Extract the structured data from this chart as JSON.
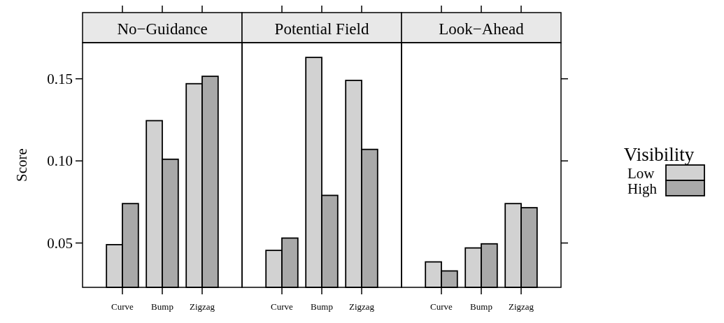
{
  "chart_data": [
    {
      "type": "bar",
      "title": "No−Guidance",
      "ylabel": "Score",
      "categories": [
        "Curve",
        "Bump",
        "Zigzag"
      ],
      "ylim": [
        0.023,
        0.172
      ],
      "yticks": [
        {
          "value": 0.05,
          "label": "0.05"
        },
        {
          "value": 0.1,
          "label": "0.10"
        },
        {
          "value": 0.15,
          "label": "0.15"
        }
      ],
      "tick_labels": "xy",
      "grid": false,
      "series": [
        {
          "color": "#d2d2d2",
          "values": [
            0.049,
            0.1245,
            0.147
          ]
        },
        {
          "color": "#a9a9a9",
          "values": [
            0.074,
            0.101,
            0.1515
          ]
        }
      ]
    },
    {
      "type": "bar",
      "title": "Potential Field",
      "categories": [
        "Curve",
        "Bump",
        "Zigzag"
      ],
      "ylim": [
        0.023,
        0.172
      ],
      "tick_labels": "x",
      "grid": false,
      "series": [
        {
          "color": "#d2d2d2",
          "values": [
            0.0455,
            0.163,
            0.149
          ]
        },
        {
          "color": "#a9a9a9",
          "values": [
            0.053,
            0.079,
            0.107
          ]
        }
      ]
    },
    {
      "type": "bar",
      "title": "Look−Ahead",
      "categories": [
        "Curve",
        "Bump",
        "Zigzag"
      ],
      "ylim": [
        0.023,
        0.172
      ],
      "yticks": [
        {
          "value": 0.05,
          "label": null
        },
        {
          "value": 0.1,
          "label": null
        },
        {
          "value": 0.15,
          "label": null
        }
      ],
      "tick_labels": "x",
      "grid": false,
      "legend": "right",
      "legend_title": "Visibility",
      "series": [
        {
          "name": "Low",
          "color": "#d2d2d2",
          "values": [
            0.0385,
            0.047,
            0.074
          ]
        },
        {
          "name": "High",
          "color": "#a9a9a9",
          "values": [
            0.033,
            0.0495,
            0.0715
          ]
        }
      ]
    }
  ]
}
